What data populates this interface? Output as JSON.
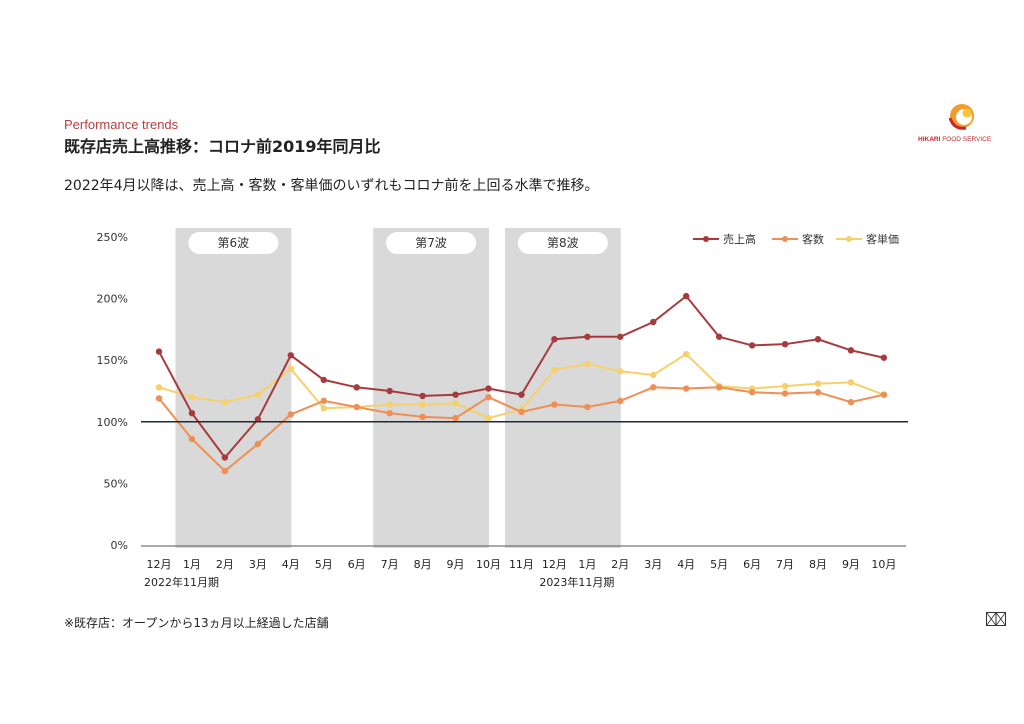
{
  "header": {
    "subtitle_en": "Performance trends",
    "title": "既存店売上高推移：コロナ前2019年同月比",
    "lead": "2022年4月以降は、売上高・客数・客単価のいずれもコロナ前を上回る水準で推移。"
  },
  "logo": {
    "brand": "HIKARI",
    "rest": " FOOD SERVICE",
    "icon": "hikari-sun-logo"
  },
  "footnote": "※既存店：オープンから13ヵ月以上経過した店舗",
  "corner_icon": "grid-mark-icon",
  "chart_data": {
    "type": "line",
    "categories": [
      "12月",
      "1月",
      "2月",
      "3月",
      "4月",
      "5月",
      "6月",
      "7月",
      "8月",
      "9月",
      "10月",
      "11月",
      "12月",
      "1月",
      "2月",
      "3月",
      "4月",
      "5月",
      "6月",
      "7月",
      "8月",
      "9月",
      "10月"
    ],
    "period_labels": [
      {
        "index": 0,
        "text": "2022年11月期"
      },
      {
        "index": 12,
        "text": "2023年11月期"
      }
    ],
    "ylim": [
      0,
      250
    ],
    "yticks": [
      0,
      50,
      100,
      150,
      200,
      250
    ],
    "ytick_labels": [
      "0%",
      "50%",
      "100%",
      "150%",
      "200%",
      "250%"
    ],
    "reference_line": 100,
    "waves": [
      {
        "label": "第6波",
        "start": 1,
        "end": 4
      },
      {
        "label": "第7波",
        "start": 7,
        "end": 10
      },
      {
        "label": "第8波",
        "start": 11,
        "end": 14
      }
    ],
    "legend_position": "top-right",
    "series": [
      {
        "name": "売上高",
        "color": "#a83a3e",
        "values": [
          157,
          107,
          71,
          102,
          154,
          134,
          128,
          125,
          121,
          122,
          127,
          122,
          167,
          169,
          169,
          181,
          202,
          169,
          162,
          163,
          167,
          158,
          152
        ]
      },
      {
        "name": "客数",
        "color": "#ef8f55",
        "values": [
          119,
          86,
          60,
          82,
          106,
          117,
          112,
          107,
          104,
          103,
          120,
          108,
          114,
          112,
          117,
          128,
          127,
          128,
          124,
          123,
          124,
          116,
          122
        ]
      },
      {
        "name": "客単価",
        "color": "#f6d06a",
        "values": [
          128,
          120,
          116,
          122,
          143,
          111,
          112,
          114,
          114,
          115,
          103,
          110,
          142,
          147,
          141,
          138,
          155,
          129,
          127,
          129,
          131,
          132,
          122
        ]
      }
    ]
  }
}
